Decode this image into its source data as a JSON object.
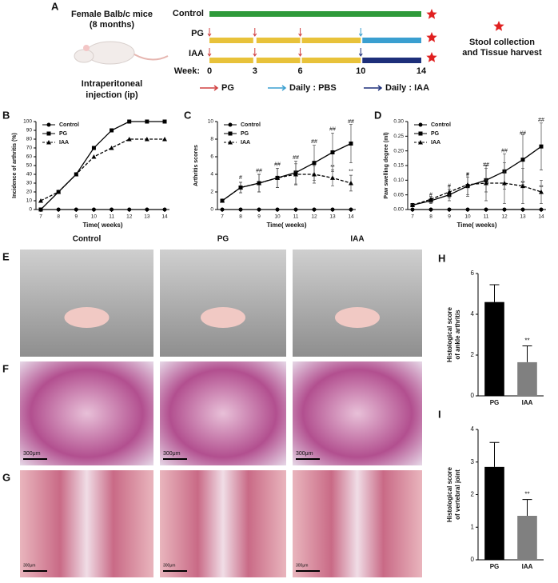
{
  "schematic": {
    "panel": "A",
    "subject": [
      "Female Balb/c mice",
      "(8 months)"
    ],
    "route": [
      "Intraperitoneal",
      "injection (ip)"
    ],
    "groups": [
      {
        "name": "Control",
        "color": "#2e9a3a"
      },
      {
        "name": "PG",
        "color": "#e8c23a",
        "after_color": "#3a9fd0"
      },
      {
        "name": "IAA",
        "color": "#e8c23a",
        "after_color": "#1d2f7a"
      }
    ],
    "week_label": "Week:",
    "weeks": [
      0,
      3,
      6,
      10,
      14
    ],
    "legend": [
      {
        "label": "PG",
        "color": "#d04040"
      },
      {
        "label": "Daily : PBS",
        "color": "#3a9fd0"
      },
      {
        "label": "Daily : IAA",
        "color": "#1d2f7a"
      }
    ],
    "endpoint": [
      "Stool collection",
      "and Tissue harvest"
    ]
  },
  "chart_data": [
    {
      "type": "line",
      "panel": "B",
      "xlabel": "Time( weeks)",
      "ylabel": "Incidence of arthritis (%)",
      "x": [
        7,
        8,
        9,
        10,
        11,
        12,
        13,
        14
      ],
      "xlim": [
        7,
        14
      ],
      "xticks": [
        7,
        8,
        9,
        10,
        11,
        12,
        13,
        14
      ],
      "ylim": [
        0,
        100
      ],
      "yticks": [
        0,
        10,
        20,
        30,
        40,
        50,
        60,
        70,
        80,
        90,
        100
      ],
      "legend": "upper left",
      "series": [
        {
          "name": "Control",
          "color": "#000000",
          "marker": "circle",
          "dashed": false,
          "values": [
            0,
            0,
            0,
            0,
            0,
            0,
            0,
            0
          ]
        },
        {
          "name": "PG",
          "color": "#000000",
          "marker": "square",
          "dashed": false,
          "values": [
            0,
            20,
            40,
            70,
            90,
            100,
            100,
            100
          ]
        },
        {
          "name": "IAA",
          "color": "#000000",
          "marker": "triangle",
          "dashed": true,
          "values": [
            10,
            20,
            40,
            60,
            70,
            80,
            80,
            80
          ]
        }
      ]
    },
    {
      "type": "line",
      "panel": "C",
      "xlabel": "Time( weeks)",
      "ylabel": "Arthritis scores",
      "x": [
        7,
        8,
        9,
        10,
        11,
        12,
        13,
        14
      ],
      "xlim": [
        7,
        14
      ],
      "xticks": [
        7,
        8,
        9,
        10,
        11,
        12,
        13,
        14
      ],
      "ylim": [
        0,
        10
      ],
      "yticks": [
        0,
        2,
        4,
        6,
        8,
        10
      ],
      "legend": "upper left",
      "series": [
        {
          "name": "Control",
          "color": "#000000",
          "marker": "circle",
          "dashed": false,
          "values": [
            0,
            0,
            0,
            0,
            0,
            0,
            0,
            0
          ]
        },
        {
          "name": "PG",
          "color": "#000000",
          "marker": "square",
          "dashed": false,
          "values": [
            1,
            2.5,
            3,
            3.6,
            4.2,
            5.3,
            6.5,
            7.5
          ],
          "errors": [
            0,
            0.6,
            1,
            1.1,
            1.3,
            2,
            2.2,
            2.2
          ]
        },
        {
          "name": "IAA",
          "color": "#000000",
          "marker": "triangle",
          "dashed": true,
          "values": [
            1,
            2.5,
            3,
            3.6,
            4,
            4,
            3.6,
            3
          ],
          "errors": [
            0,
            0.6,
            1,
            1.1,
            1.2,
            1,
            0.9,
            0.9
          ]
        }
      ],
      "annotations": [
        {
          "text": "#",
          "x": 8,
          "y": 3.6
        },
        {
          "text": "##",
          "x": 9,
          "y": 4.4
        },
        {
          "text": "##",
          "x": 10,
          "y": 5.1
        },
        {
          "text": "##",
          "x": 11,
          "y": 5.9
        },
        {
          "text": "##",
          "x": 12,
          "y": 7.7
        },
        {
          "text": "##",
          "x": 13,
          "y": 9.1
        },
        {
          "text": "##",
          "x": 14,
          "y": 10
        },
        {
          "text": "**",
          "x": 13,
          "y": 4.8
        },
        {
          "text": "**",
          "x": 14,
          "y": 4.3
        }
      ]
    },
    {
      "type": "line",
      "panel": "D",
      "xlabel": "Time( weeks)",
      "ylabel": "Paw swelling degree (ml)",
      "x": [
        7,
        8,
        9,
        10,
        11,
        12,
        13,
        14
      ],
      "xlim": [
        7,
        14
      ],
      "xticks": [
        7,
        8,
        9,
        10,
        11,
        12,
        13,
        14
      ],
      "ylim": [
        0,
        0.3
      ],
      "yticks": [
        {
          "value": 0,
          "label": "0.00"
        },
        {
          "value": 0.05,
          "label": "0.05"
        },
        {
          "value": 0.1,
          "label": "0.10"
        },
        {
          "value": 0.15,
          "label": "0.15"
        },
        {
          "value": 0.2,
          "label": "0.20"
        },
        {
          "value": 0.25,
          "label": "0.25"
        },
        {
          "value": 0.3,
          "label": "0.30"
        }
      ],
      "legend": "upper left",
      "series": [
        {
          "name": "Control",
          "color": "#000000",
          "marker": "circle",
          "dashed": false,
          "values": [
            0,
            0,
            0,
            0,
            0,
            0,
            0,
            0
          ]
        },
        {
          "name": "PG",
          "color": "#000000",
          "marker": "square",
          "dashed": false,
          "values": [
            0.015,
            0.03,
            0.05,
            0.08,
            0.1,
            0.13,
            0.17,
            0.215
          ],
          "errors": [
            0.003,
            0.01,
            0.02,
            0.03,
            0.04,
            0.06,
            0.085,
            0.08
          ]
        },
        {
          "name": "IAA",
          "color": "#000000",
          "marker": "triangle",
          "dashed": true,
          "values": [
            0.015,
            0.035,
            0.06,
            0.085,
            0.09,
            0.09,
            0.08,
            0.06
          ],
          "errors": [
            0.003,
            0.01,
            0.02,
            0.04,
            0.06,
            0.07,
            0.06,
            0.04
          ]
        }
      ],
      "annotations": [
        {
          "text": "#",
          "x": 8,
          "y": 0.05
        },
        {
          "text": "#",
          "x": 9,
          "y": 0.08
        },
        {
          "text": "#",
          "x": 10,
          "y": 0.118
        },
        {
          "text": "##",
          "x": 11,
          "y": 0.152
        },
        {
          "text": "##",
          "x": 12,
          "y": 0.2
        },
        {
          "text": "##",
          "x": 13,
          "y": 0.26
        },
        {
          "text": "##",
          "x": 14,
          "y": 0.305
        },
        {
          "text": "**",
          "x": 13,
          "y": 0.09
        },
        {
          "text": "**",
          "x": 14,
          "y": 0.075
        }
      ]
    },
    {
      "type": "bar",
      "panel": "H",
      "ylabel": [
        "Histological score",
        "of ankle arthritis"
      ],
      "categories": [
        "PG",
        "IAA"
      ],
      "values": [
        4.6,
        1.65
      ],
      "errors": [
        0.85,
        0.8
      ],
      "colors": [
        "#000000",
        "#808080"
      ],
      "ylim": [
        0,
        6
      ],
      "yticks": [
        0,
        2,
        4,
        6
      ],
      "annotations": [
        {
          "text": "**",
          "category": 1,
          "y": 2.7
        }
      ]
    },
    {
      "type": "bar",
      "panel": "I",
      "ylabel": [
        "Histological score",
        "of vertebral joint"
      ],
      "categories": [
        "PG",
        "IAA"
      ],
      "values": [
        2.85,
        1.35
      ],
      "errors": [
        0.75,
        0.5
      ],
      "colors": [
        "#000000",
        "#808080"
      ],
      "ylim": [
        0,
        4
      ],
      "yticks": [
        0,
        1,
        2,
        3,
        4
      ],
      "annotations": [
        {
          "text": "**",
          "category": 1,
          "y": 2
        }
      ]
    }
  ],
  "photos": {
    "column_labels": [
      "Control",
      "PG",
      "IAA"
    ],
    "rows": [
      {
        "panel": "E",
        "scale_bars": []
      },
      {
        "panel": "F",
        "scale_bars": [
          "300μm",
          "300μm",
          "300μm"
        ]
      },
      {
        "panel": "G",
        "scale_bars": [
          "300μm",
          "300μm",
          "300μm"
        ]
      }
    ]
  }
}
